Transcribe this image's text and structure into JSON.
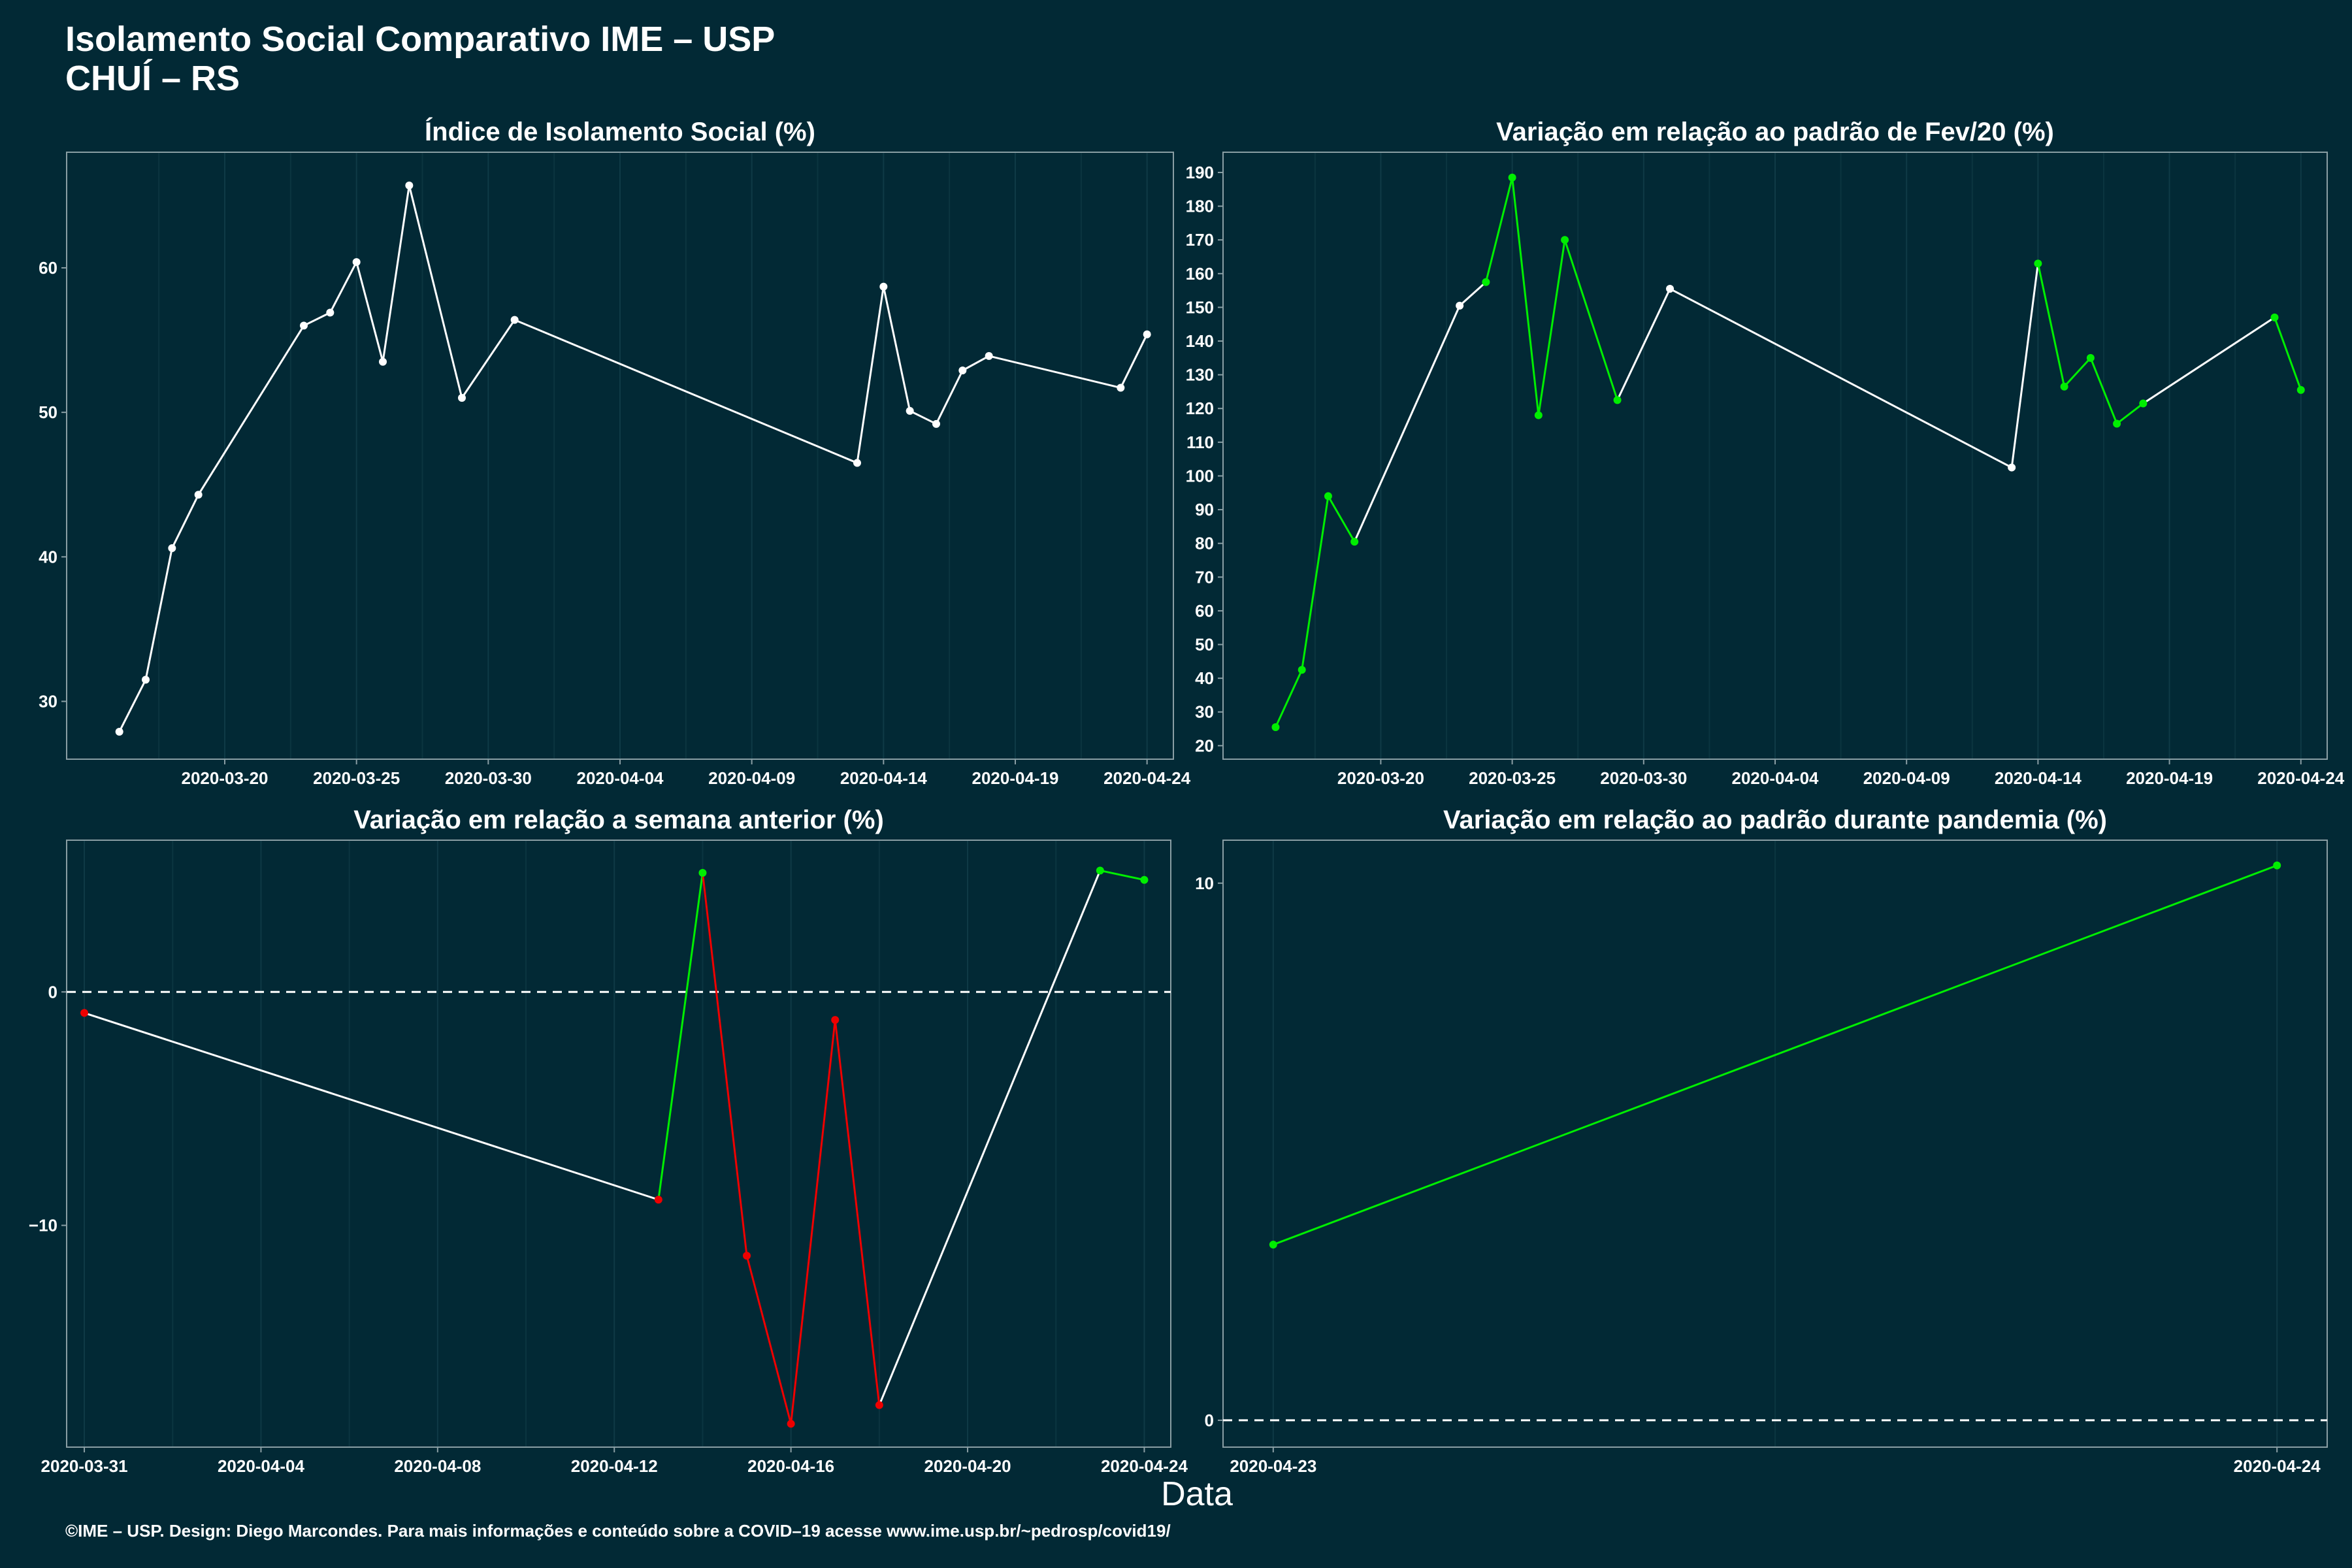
{
  "title": {
    "line1": "Isolamento Social Comparativo IME – USP",
    "line2": "CHUÍ – RS"
  },
  "xlabel": "Data",
  "caption": "©IME – USP. Design: Diego Marcondes. Para mais informações e conteúdo sobre a COVID–19 acesse www.ime.usp.br/~pedrosp/covid19/",
  "colors": {
    "background": "#022935",
    "neutral": "#ffffff",
    "up": "#00ee00",
    "down": "#ee0000",
    "frame": "#8a9ea4",
    "grid": "#0f3a46"
  },
  "chart_data": [
    {
      "id": "isolamento",
      "type": "line",
      "title": "Índice de Isolamento Social (%)",
      "xlabel": "",
      "ylabel": "",
      "color_mode": "single",
      "xlim": [
        "2020-03-14",
        "2020-04-25"
      ],
      "ylim": [
        26,
        68
      ],
      "xticks": [
        "2020-03-20",
        "2020-03-25",
        "2020-03-30",
        "2020-04-04",
        "2020-04-09",
        "2020-04-14",
        "2020-04-19",
        "2020-04-24"
      ],
      "yticks": [
        30,
        40,
        50,
        60
      ],
      "grid": true,
      "series": [
        {
          "x": [
            "2020-03-16",
            "2020-03-17",
            "2020-03-18",
            "2020-03-19",
            "2020-03-23",
            "2020-03-24",
            "2020-03-25",
            "2020-03-26",
            "2020-03-27",
            "2020-03-29",
            "2020-03-31",
            "2020-04-13",
            "2020-04-14",
            "2020-04-15",
            "2020-04-16",
            "2020-04-17",
            "2020-04-18",
            "2020-04-23",
            "2020-04-24"
          ],
          "y": [
            27.9,
            31.5,
            40.6,
            44.3,
            56.0,
            56.9,
            60.4,
            53.5,
            65.7,
            51.0,
            56.4,
            46.5,
            58.7,
            50.1,
            49.2,
            52.9,
            53.9,
            51.7,
            55.4
          ]
        }
      ]
    },
    {
      "id": "fev20",
      "type": "line",
      "title": "Variação em relação ao padrão de Fev/20 (%)",
      "xlabel": "",
      "ylabel": "",
      "color_mode": "weekday",
      "xlim": [
        "2020-03-14",
        "2020-04-25"
      ],
      "ylim": [
        16,
        196
      ],
      "xticks": [
        "2020-03-20",
        "2020-03-25",
        "2020-03-30",
        "2020-04-04",
        "2020-04-09",
        "2020-04-14",
        "2020-04-19",
        "2020-04-24"
      ],
      "yticks": [
        20,
        30,
        40,
        50,
        60,
        70,
        80,
        90,
        100,
        110,
        120,
        130,
        140,
        150,
        160,
        170,
        180,
        190
      ],
      "grid": true,
      "series": [
        {
          "x": [
            "2020-03-16",
            "2020-03-17",
            "2020-03-18",
            "2020-03-19",
            "2020-03-23",
            "2020-03-24",
            "2020-03-25",
            "2020-03-26",
            "2020-03-27",
            "2020-03-29",
            "2020-03-31",
            "2020-04-13",
            "2020-04-14",
            "2020-04-15",
            "2020-04-16",
            "2020-04-17",
            "2020-04-18",
            "2020-04-23",
            "2020-04-24"
          ],
          "y": [
            25.5,
            42.5,
            94.0,
            80.5,
            150.5,
            157.5,
            188.5,
            118.0,
            170.0,
            122.5,
            155.5,
            102.5,
            163.0,
            126.5,
            135.0,
            115.5,
            121.5,
            147.0,
            125.5
          ],
          "segment_colors": [
            "up",
            "up",
            "up",
            "neutral",
            "neutral",
            "up",
            "up",
            "up",
            "up",
            "neutral",
            "neutral",
            "neutral",
            "up",
            "up",
            "up",
            "up",
            "neutral",
            "up"
          ]
        }
      ]
    },
    {
      "id": "semana",
      "type": "line",
      "title": "Variação em relação a semana anterior (%)",
      "xlabel": "",
      "ylabel": "",
      "color_mode": "sign",
      "xlim": [
        "2020-03-30.6",
        "2020-04-24.6"
      ],
      "ylim": [
        -19.5,
        6.5
      ],
      "xticks": [
        "2020-03-31",
        "2020-04-04",
        "2020-04-08",
        "2020-04-12",
        "2020-04-16",
        "2020-04-20",
        "2020-04-24"
      ],
      "yticks": [
        -10,
        0
      ],
      "zero_line": true,
      "grid": true,
      "series": [
        {
          "x": [
            "2020-03-31",
            "2020-04-13",
            "2020-04-14",
            "2020-04-15",
            "2020-04-16",
            "2020-04-17",
            "2020-04-18",
            "2020-04-23",
            "2020-04-24"
          ],
          "y": [
            -0.9,
            -8.9,
            5.1,
            -11.3,
            -18.5,
            -1.2,
            -17.7,
            5.2,
            4.8
          ],
          "segment_colors": [
            "neutral",
            "up",
            "down",
            "down",
            "down",
            "down",
            "neutral",
            "up"
          ]
        }
      ]
    },
    {
      "id": "pandemia",
      "type": "line",
      "title": "Variação em relação ao padrão durante pandemia (%)",
      "xlabel": "",
      "ylabel": "",
      "color_mode": "sign",
      "xlim": [
        "2020-04-22.95",
        "2020-04-24.05"
      ],
      "ylim": [
        -0.5,
        10.8
      ],
      "xticks": [
        "2020-04-23",
        "2020-04-24"
      ],
      "yticks": [
        0,
        10
      ],
      "zero_line": true,
      "grid": true,
      "series": [
        {
          "x": [
            "2020-04-23",
            "2020-04-24"
          ],
          "y": [
            3.27,
            10.33
          ],
          "segment_colors": [
            "up"
          ]
        }
      ]
    }
  ]
}
